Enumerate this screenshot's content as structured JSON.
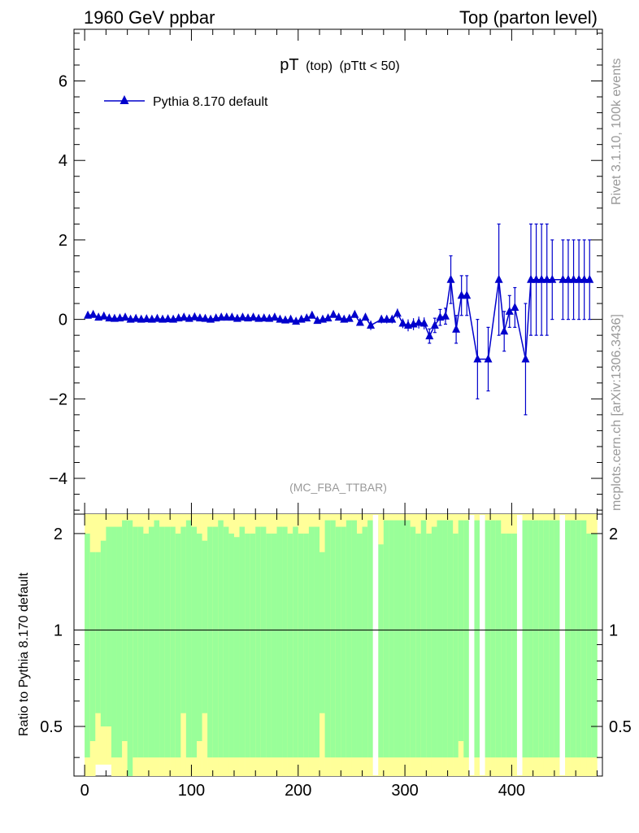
{
  "header": {
    "left": "1960 GeV ppbar",
    "right": "Top (parton level)"
  },
  "side_labels": {
    "rivet": "Rivet 3.1.10,  100k events",
    "mcplots": "mcplots.cern.ch [arXiv:1306.3436]"
  },
  "chart_data": {
    "type": "line",
    "title": "pT (top) (pTtt < 50)",
    "title_main": "pT",
    "title_sub1": "(top)",
    "title_sub2": "(pTtt < 50)",
    "analysis": "(MC_FBA_TTBAR)",
    "legend": "Pythia 8.170 default",
    "xlim": [
      -10,
      485
    ],
    "ylim": [
      -4.9,
      7.3
    ],
    "x_ticks": [
      0,
      100,
      200,
      300,
      400
    ],
    "y_ticks": [
      -4,
      -2,
      0,
      2,
      4,
      6
    ],
    "y_tick_labels": [
      "−4",
      "−2",
      "0",
      "2",
      "4",
      "6"
    ],
    "series": [
      {
        "name": "Pythia 8.170 default",
        "color": "#0000cc",
        "x": [
          3,
          8,
          13,
          18,
          23,
          28,
          33,
          38,
          43,
          48,
          53,
          58,
          63,
          68,
          73,
          78,
          83,
          88,
          93,
          98,
          103,
          108,
          113,
          118,
          123,
          128,
          133,
          138,
          143,
          148,
          153,
          158,
          163,
          168,
          173,
          178,
          183,
          188,
          193,
          198,
          203,
          208,
          213,
          218,
          223,
          228,
          233,
          238,
          243,
          248,
          253,
          258,
          263,
          268,
          278,
          283,
          288,
          293,
          298,
          303,
          308,
          313,
          318,
          323,
          328,
          333,
          338,
          343,
          348,
          353,
          358,
          368,
          378,
          388,
          393,
          398,
          403,
          413,
          418,
          423,
          428,
          433,
          438,
          448,
          453,
          458,
          463,
          468,
          473
        ],
        "y": [
          0.1,
          0.12,
          0.05,
          0.08,
          0.03,
          0.02,
          0.03,
          0.05,
          0.0,
          0.02,
          0.0,
          0.01,
          0.0,
          0.02,
          0.0,
          0.01,
          0.0,
          0.03,
          0.05,
          0.02,
          0.06,
          0.03,
          0.02,
          0.0,
          0.03,
          0.05,
          0.05,
          0.05,
          0.02,
          0.05,
          0.03,
          0.05,
          0.02,
          0.03,
          0.02,
          0.05,
          0.0,
          -0.02,
          0.0,
          -0.05,
          0.0,
          0.03,
          0.1,
          -0.03,
          0.0,
          0.03,
          0.12,
          0.05,
          0.0,
          0.02,
          0.12,
          -0.08,
          0.05,
          -0.15,
          0.0,
          0.0,
          0.0,
          0.15,
          -0.1,
          -0.15,
          -0.12,
          -0.08,
          -0.1,
          -0.42,
          -0.15,
          0.05,
          0.08,
          1.0,
          -0.25,
          0.6,
          0.6,
          -1.0,
          -1.0,
          1.0,
          -0.3,
          0.2,
          0.3,
          -1.0,
          1.0,
          1.0,
          1.0,
          1.0,
          1.0,
          1.0,
          1.0,
          1.0,
          1.0,
          1.0,
          1.0
        ],
        "yerr": [
          0.04,
          0.04,
          0.04,
          0.04,
          0.04,
          0.04,
          0.04,
          0.04,
          0.04,
          0.04,
          0.04,
          0.04,
          0.04,
          0.04,
          0.04,
          0.04,
          0.04,
          0.04,
          0.04,
          0.04,
          0.04,
          0.04,
          0.04,
          0.04,
          0.04,
          0.04,
          0.04,
          0.04,
          0.04,
          0.04,
          0.04,
          0.04,
          0.04,
          0.04,
          0.04,
          0.05,
          0.05,
          0.05,
          0.05,
          0.05,
          0.05,
          0.05,
          0.06,
          0.05,
          0.05,
          0.05,
          0.06,
          0.06,
          0.06,
          0.06,
          0.07,
          0.08,
          0.08,
          0.12,
          0.1,
          0.1,
          0.1,
          0.12,
          0.12,
          0.15,
          0.15,
          0.15,
          0.15,
          0.18,
          0.18,
          0.2,
          0.2,
          0.6,
          0.35,
          0.5,
          0.5,
          1.0,
          0.8,
          1.4,
          0.5,
          0.4,
          0.5,
          1.4,
          1.4,
          1.4,
          1.4,
          1.4,
          1.0,
          1.0,
          1.0,
          1.0,
          1.0,
          1.0,
          1.0
        ]
      }
    ],
    "ratio": {
      "ylabel": "Ratio to Pythia 8.170 default",
      "ylim": [
        0.35,
        2.3
      ],
      "y_ticks": [
        0.5,
        1,
        2
      ],
      "y_tick_labels": [
        "0.5",
        "1",
        "2"
      ],
      "bin_width": 5,
      "bins_x": [
        0,
        5,
        10,
        15,
        20,
        25,
        30,
        35,
        40,
        45,
        50,
        55,
        60,
        65,
        70,
        75,
        80,
        85,
        90,
        95,
        100,
        105,
        110,
        115,
        120,
        125,
        130,
        135,
        140,
        145,
        150,
        155,
        160,
        165,
        170,
        175,
        180,
        185,
        190,
        195,
        200,
        205,
        210,
        215,
        220,
        225,
        230,
        235,
        240,
        245,
        250,
        255,
        260,
        265,
        270,
        275,
        280,
        285,
        290,
        295,
        300,
        305,
        310,
        315,
        320,
        325,
        330,
        335,
        340,
        345,
        350,
        355,
        360,
        365,
        370,
        375,
        380,
        385,
        390,
        395,
        400,
        405,
        410,
        415,
        420,
        425,
        430,
        435,
        440,
        445,
        450,
        455,
        460,
        465,
        470,
        475
      ],
      "green_lo": [
        0.4,
        0.45,
        0.55,
        0.5,
        0.5,
        0.4,
        0.4,
        0.45,
        0.35,
        0.4,
        0.4,
        0.4,
        0.4,
        0.4,
        0.4,
        0.4,
        0.4,
        0.4,
        0.55,
        0.4,
        0.4,
        0.45,
        0.55,
        0.4,
        0.4,
        0.4,
        0.4,
        0.4,
        0.4,
        0.4,
        0.4,
        0.4,
        0.4,
        0.4,
        0.4,
        0.4,
        0.4,
        0.4,
        0.4,
        0.4,
        0.4,
        0.4,
        0.4,
        0.4,
        0.55,
        0.4,
        0.4,
        0.4,
        0.4,
        0.4,
        0.4,
        0.4,
        0.4,
        0.4,
        0.4,
        0.4,
        0.4,
        0.4,
        0.4,
        0.4,
        0.4,
        0.4,
        0.4,
        0.4,
        0.4,
        0.4,
        0.4,
        0.4,
        0.4,
        0.4,
        0.45,
        0.4,
        0.4,
        0.4,
        0.4,
        0.4,
        0.4,
        0.4,
        0.4,
        0.4,
        0.4,
        0.4,
        0.4,
        0.4,
        0.4,
        0.4,
        0.4,
        0.4,
        0.4,
        0.4,
        0.4,
        0.4,
        0.4,
        0.4,
        0.4,
        0.4
      ],
      "green_hi": [
        2.0,
        1.75,
        1.75,
        1.9,
        2.1,
        2.1,
        2.1,
        2.2,
        2.2,
        2.1,
        2.1,
        2.0,
        2.1,
        2.2,
        2.1,
        2.1,
        2.1,
        2.0,
        2.1,
        2.2,
        2.1,
        2.0,
        1.9,
        2.1,
        2.1,
        2.2,
        2.1,
        2.0,
        1.95,
        2.1,
        2.0,
        2.0,
        2.1,
        2.1,
        2.0,
        2.0,
        2.1,
        2.1,
        2.0,
        2.1,
        2.0,
        2.0,
        2.1,
        2.1,
        1.75,
        2.2,
        2.2,
        2.1,
        2.1,
        2.2,
        2.2,
        2.0,
        2.1,
        2.2,
        2.2,
        1.85,
        2.2,
        2.2,
        2.2,
        2.2,
        2.2,
        2.1,
        2.0,
        2.2,
        2.0,
        2.1,
        2.2,
        2.2,
        2.2,
        2.0,
        2.2,
        2.2,
        2.2,
        2.2,
        2.2,
        2.2,
        2.2,
        2.2,
        2.0,
        2.0,
        2.0,
        2.2,
        2.2,
        2.2,
        2.2,
        2.2,
        2.2,
        2.2,
        2.2,
        2.2,
        2.2,
        2.2,
        2.2,
        2.2,
        2.0,
        2.0
      ],
      "yellow_lo": [
        0.35,
        0.35,
        0.38,
        0.38,
        0.38,
        0.35,
        0.35,
        0.35,
        0.35,
        0.35,
        0.35,
        0.35,
        0.35,
        0.35,
        0.35,
        0.35,
        0.35,
        0.35,
        0.35,
        0.35,
        0.35,
        0.35,
        0.35,
        0.35,
        0.35,
        0.35,
        0.35,
        0.35,
        0.35,
        0.35,
        0.35,
        0.35,
        0.35,
        0.35,
        0.35,
        0.35,
        0.35,
        0.35,
        0.35,
        0.35,
        0.35,
        0.35,
        0.35,
        0.35,
        0.35,
        0.35,
        0.35,
        0.35,
        0.35,
        0.35,
        0.35,
        0.35,
        0.35,
        0.35,
        0.35,
        0.35,
        0.35,
        0.35,
        0.35,
        0.35,
        0.35,
        0.35,
        0.35,
        0.35,
        0.35,
        0.35,
        0.35,
        0.35,
        0.35,
        0.35,
        0.35,
        0.35,
        0.35,
        0.35,
        0.35,
        0.35,
        0.35,
        0.35,
        0.35,
        0.35,
        0.35,
        0.35,
        0.35,
        0.35,
        0.35,
        0.35,
        0.35,
        0.35,
        0.35,
        0.35,
        0.35,
        0.35,
        0.35,
        0.35,
        0.35,
        0.35
      ],
      "yellow_hi": [
        2.3,
        2.3,
        2.3,
        2.3,
        2.3,
        2.3,
        2.3,
        2.3,
        2.3,
        2.3,
        2.3,
        2.3,
        2.3,
        2.3,
        2.3,
        2.3,
        2.3,
        2.3,
        2.3,
        2.3,
        2.3,
        2.3,
        2.3,
        2.3,
        2.3,
        2.3,
        2.3,
        2.3,
        2.3,
        2.3,
        2.3,
        2.3,
        2.3,
        2.3,
        2.3,
        2.3,
        2.3,
        2.3,
        2.3,
        2.3,
        2.3,
        2.3,
        2.3,
        2.3,
        2.3,
        2.3,
        2.3,
        2.3,
        2.3,
        2.3,
        2.3,
        2.3,
        2.3,
        2.3,
        2.3,
        2.3,
        2.3,
        2.3,
        2.3,
        2.3,
        2.3,
        2.3,
        2.3,
        2.3,
        2.3,
        2.3,
        2.3,
        2.3,
        2.3,
        2.3,
        2.3,
        2.3,
        2.3,
        2.3,
        2.3,
        2.3,
        2.3,
        2.3,
        2.3,
        2.3,
        2.3,
        2.3,
        2.3,
        2.3,
        2.3,
        2.3,
        2.3,
        2.3,
        2.3,
        2.3,
        2.3,
        2.3,
        2.3,
        2.3,
        2.3,
        2.3
      ],
      "empty_bins_x": [
        270,
        360,
        370,
        405,
        445
      ]
    }
  }
}
